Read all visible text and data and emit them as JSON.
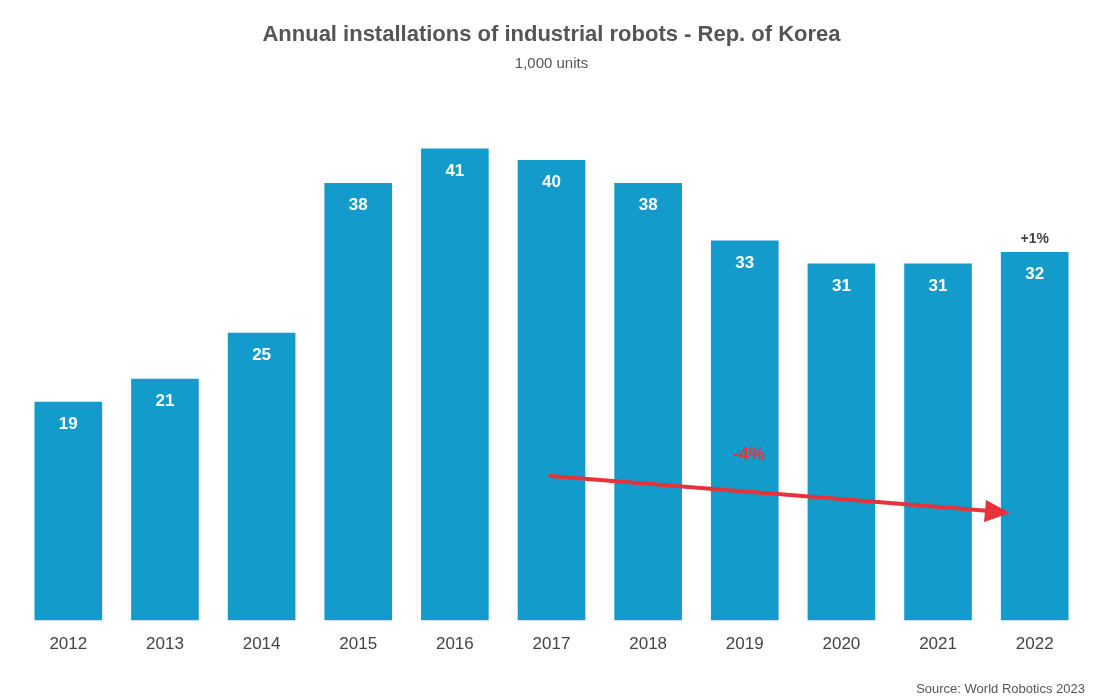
{
  "chart_data": {
    "type": "bar",
    "title": "Annual installations of industrial robots - Rep. of Korea",
    "subtitle": "1,000 units",
    "categories": [
      "2012",
      "2013",
      "2014",
      "2015",
      "2016",
      "2017",
      "2018",
      "2019",
      "2020",
      "2021",
      "2022"
    ],
    "values": [
      19,
      21,
      25,
      38,
      41,
      40,
      38,
      33,
      31,
      31,
      32
    ],
    "color": "#139ccb",
    "data_labels": true,
    "tick_labels": "x",
    "grid": false,
    "legend": false,
    "annotations": [
      {
        "text": "+1%",
        "x": "2022",
        "y": 32
      },
      "-4%",
      "Source: World Robotics 2023"
    ]
  }
}
